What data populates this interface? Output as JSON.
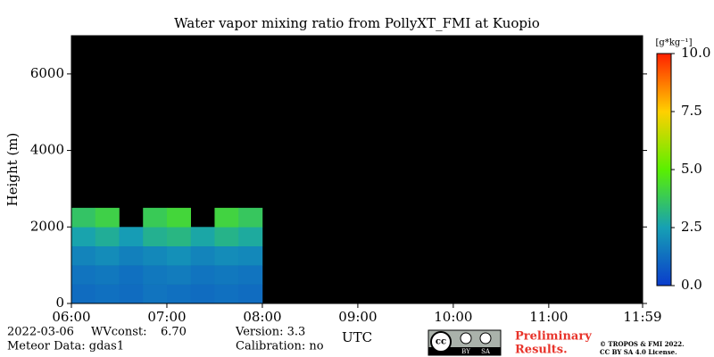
{
  "chart_data": {
    "type": "heatmap",
    "title": "Water vapor mixing ratio from PollyXT_FMI at Kuopio",
    "y_label": "Height (m)",
    "x_label": "UTC",
    "xlim": [
      6,
      11.983
    ],
    "ylim": [
      0,
      7000
    ],
    "xticks": [
      {
        "value": 6,
        "label": "06:00"
      },
      {
        "value": 7,
        "label": "07:00"
      },
      {
        "value": 8,
        "label": "08:00"
      },
      {
        "value": 9,
        "label": "09:00"
      },
      {
        "value": 10,
        "label": "10:00"
      },
      {
        "value": 11,
        "label": "11:00"
      },
      {
        "value": 11.983,
        "label": "11:59"
      }
    ],
    "yticks": [
      0,
      2000,
      4000,
      6000
    ],
    "x_bins": [
      6,
      6.25,
      6.5,
      6.75,
      7,
      7.25,
      7.5,
      7.75,
      8
    ],
    "y_bins": [
      0,
      500,
      1000,
      1500,
      2000,
      2500
    ],
    "values": [
      [
        1.2,
        1.3,
        1.2,
        1.4,
        1.3,
        1.2,
        1.3,
        1.2
      ],
      [
        1.4,
        1.5,
        1.3,
        1.5,
        1.6,
        1.4,
        1.5,
        1.4
      ],
      [
        1.8,
        2.0,
        1.7,
        1.9,
        2.1,
        1.8,
        2.0,
        1.9
      ],
      [
        2.6,
        2.9,
        2.4,
        3.0,
        3.2,
        2.7,
        3.1,
        2.8
      ],
      [
        3.6,
        4.0,
        null,
        3.8,
        4.2,
        null,
        4.1,
        3.7
      ]
    ],
    "colorbar_label": "[g*kg⁻¹]",
    "zlim": [
      0,
      10
    ],
    "zticks": [
      {
        "value": 0,
        "label": "0.0"
      },
      2.5,
      {
        "value": 5,
        "label": "5.0"
      },
      7.5,
      {
        "value": 10,
        "label": "10.0"
      }
    ],
    "colorscale": [
      "#0a3ccc",
      "#16a0b4",
      "#5af000",
      "#ffd000",
      "#ff2000"
    ],
    "background": "#000000"
  },
  "footer": {
    "date": "2022-03-06",
    "wv_label": "WVconst:",
    "wv_value": "6.70",
    "meteor": "Meteor Data: gdas1",
    "version": "Version: 3.3",
    "calibration": "Calibration: no",
    "badge": [
      "cc",
      "BY",
      "SA"
    ],
    "preliminary": [
      "Preliminary",
      "Results."
    ],
    "copyright": [
      "© TROPOS & FMI 2022.",
      "CC BY SA 4.0 License."
    ]
  }
}
